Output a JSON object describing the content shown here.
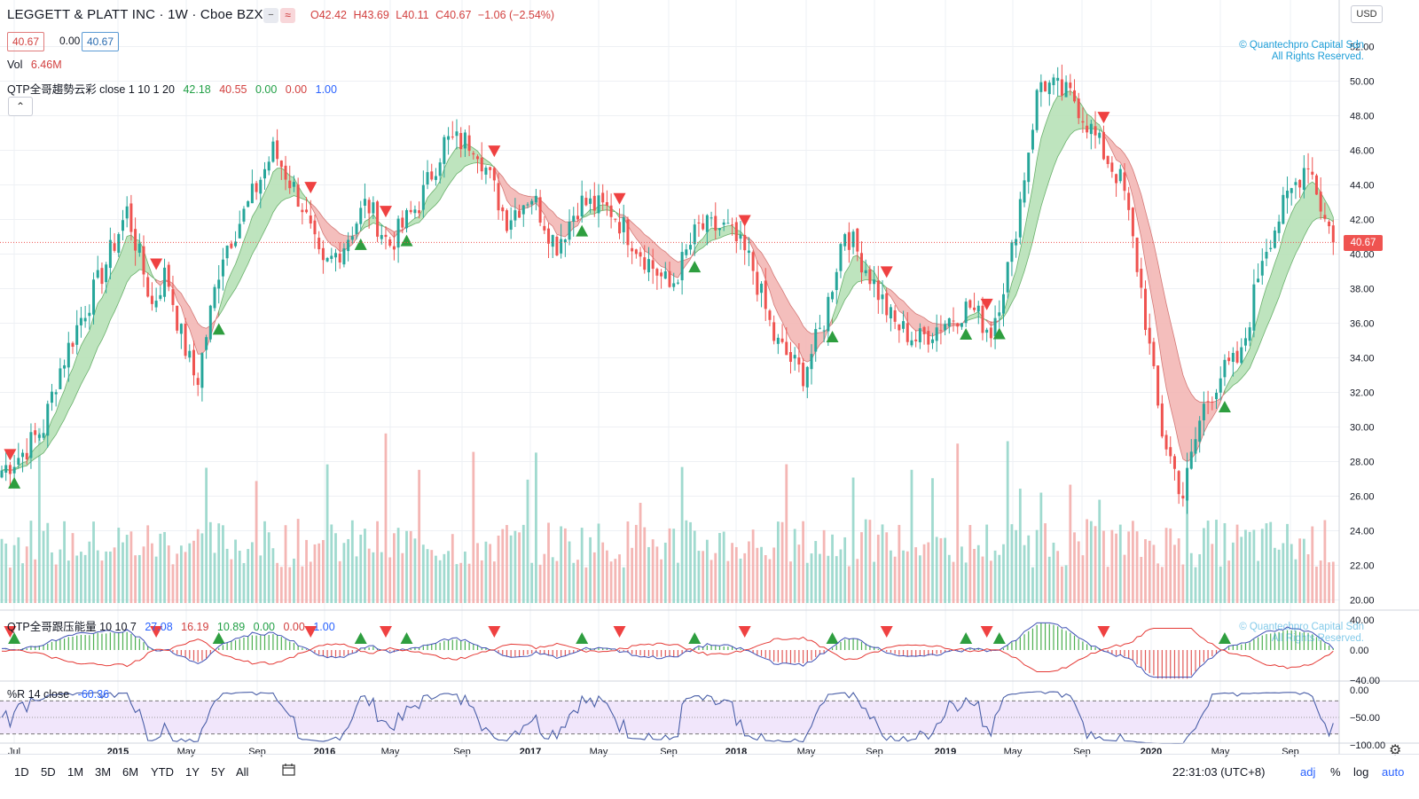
{
  "header": {
    "title": "LEGGETT & PLATT INC · 1W · Cboe BZX",
    "ohlc": {
      "o": "O42.42",
      "h": "H43.69",
      "l": "L40.11",
      "c": "C40.67",
      "chg": "−1.06 (−2.54%)"
    },
    "price_box_left": "40.67",
    "price_box_mid": "0.00",
    "price_box_right": "40.67",
    "mode_icon_1": "−",
    "mode_icon_2": "≈"
  },
  "legends": {
    "vol_label": "Vol",
    "vol_value": "6.46M",
    "trend_label": "QTP全哥趨勢云彩 close 1 10 1 20",
    "trend_v1": "42.18",
    "trend_v2": "40.55",
    "trend_v3": "0.00",
    "trend_v4": "0.00",
    "trend_v5": "1.00",
    "pressure_label": "QTP全哥跟压能量 10 10 7",
    "pressure_v1": "27.08",
    "pressure_v2": "16.19",
    "pressure_v3": "10.89",
    "pressure_v4": "0.00",
    "pressure_v5": "0.00",
    "pressure_v6": "1.00",
    "wr_label": "%R 14 close",
    "wr_value": "-60.36",
    "collapse_icon": "chevron-up-icon"
  },
  "copyright": {
    "line1": "© Quantechpro Capital Sdn",
    "line2": "All Rights Reserved."
  },
  "axis": {
    "currency": "USD",
    "current_price": "40.67",
    "price_ticks": [
      "52.00",
      "50.00",
      "48.00",
      "46.00",
      "44.00",
      "42.00",
      "40.00",
      "38.00",
      "36.00",
      "34.00",
      "32.00",
      "30.00",
      "28.00",
      "26.00",
      "24.00",
      "22.00",
      "20.00"
    ],
    "pressure_ticks": [
      "40.00",
      "0.00",
      "−40.00"
    ],
    "wr_ticks": [
      "0.00",
      "−50.00",
      "−100.00"
    ],
    "time_labels": [
      {
        "t": "Jul",
        "bold": false
      },
      {
        "t": "2015",
        "bold": true
      },
      {
        "t": "May",
        "bold": false
      },
      {
        "t": "Sep",
        "bold": false
      },
      {
        "t": "2016",
        "bold": true
      },
      {
        "t": "May",
        "bold": false
      },
      {
        "t": "Sep",
        "bold": false
      },
      {
        "t": "2017",
        "bold": true
      },
      {
        "t": "May",
        "bold": false
      },
      {
        "t": "Sep",
        "bold": false
      },
      {
        "t": "2018",
        "bold": true
      },
      {
        "t": "May",
        "bold": false
      },
      {
        "t": "Sep",
        "bold": false
      },
      {
        "t": "2019",
        "bold": true
      },
      {
        "t": "May",
        "bold": false
      },
      {
        "t": "Sep",
        "bold": false
      },
      {
        "t": "2020",
        "bold": true
      },
      {
        "t": "May",
        "bold": false
      },
      {
        "t": "Sep",
        "bold": false
      }
    ]
  },
  "bottom": {
    "ranges": [
      "1D",
      "5D",
      "1M",
      "3M",
      "6M",
      "YTD",
      "1Y",
      "5Y",
      "All"
    ],
    "clock": "22:31:03 (UTC+8)",
    "adj": "adj",
    "pct": "%",
    "log": "log",
    "auto": "auto"
  },
  "chart_data": {
    "type": "candlestick",
    "symbol": "LEGGETT & PLATT INC",
    "interval": "1W",
    "exchange": "Cboe BZX",
    "price_range": [
      20,
      53
    ],
    "anchors_week_close": [
      [
        0,
        27.5
      ],
      [
        15,
        28.5
      ],
      [
        30,
        30
      ],
      [
        40,
        33
      ],
      [
        55,
        36
      ],
      [
        70,
        38.5
      ],
      [
        90,
        42.5
      ],
      [
        100,
        39.5
      ],
      [
        108,
        37
      ],
      [
        118,
        39
      ],
      [
        128,
        35.5
      ],
      [
        140,
        32.5
      ],
      [
        158,
        40
      ],
      [
        175,
        42.5
      ],
      [
        195,
        46
      ],
      [
        215,
        43
      ],
      [
        230,
        39
      ],
      [
        245,
        40.5
      ],
      [
        262,
        43
      ],
      [
        278,
        40.5
      ],
      [
        300,
        43
      ],
      [
        318,
        46.5
      ],
      [
        340,
        46.5
      ],
      [
        362,
        42
      ],
      [
        380,
        43.5
      ],
      [
        398,
        40.5
      ],
      [
        415,
        43
      ],
      [
        438,
        42.5
      ],
      [
        460,
        40
      ],
      [
        480,
        38
      ],
      [
        500,
        41.5
      ],
      [
        520,
        41.5
      ],
      [
        538,
        39.5
      ],
      [
        555,
        35
      ],
      [
        575,
        33
      ],
      [
        590,
        36
      ],
      [
        605,
        41.5
      ],
      [
        622,
        39
      ],
      [
        640,
        36
      ],
      [
        658,
        35
      ],
      [
        675,
        36
      ],
      [
        695,
        37
      ],
      [
        710,
        35.5
      ],
      [
        725,
        40
      ],
      [
        745,
        50
      ],
      [
        770,
        49
      ],
      [
        790,
        46
      ],
      [
        805,
        44
      ],
      [
        818,
        38
      ],
      [
        832,
        30
      ],
      [
        848,
        26
      ],
      [
        862,
        31
      ],
      [
        875,
        33
      ],
      [
        890,
        34
      ],
      [
        905,
        40
      ],
      [
        922,
        43
      ],
      [
        938,
        45.5
      ],
      [
        950,
        42
      ],
      [
        958,
        40.67
      ]
    ],
    "last": {
      "open": 42.42,
      "high": 43.69,
      "low": 40.11,
      "close": 40.67,
      "change": -1.06,
      "change_pct": -2.54
    },
    "volume_last": "6.46M",
    "trend_cloud": {
      "fast": 42.18,
      "slow": 40.55
    },
    "pressure": {
      "v1": 27.08,
      "v2": 16.19,
      "v3": 10.89,
      "range": [
        -40,
        40
      ]
    },
    "williams_r": {
      "period": 14,
      "value": -60.36,
      "range": [
        -100,
        0
      ],
      "bands": [
        -20,
        -80
      ]
    },
    "colors": {
      "up": "#26a69a",
      "down": "#ef5350",
      "cloud_up": "#b7e2b8",
      "cloud_down": "#f3b7b5",
      "wr_band": "#f1e6fb"
    }
  }
}
